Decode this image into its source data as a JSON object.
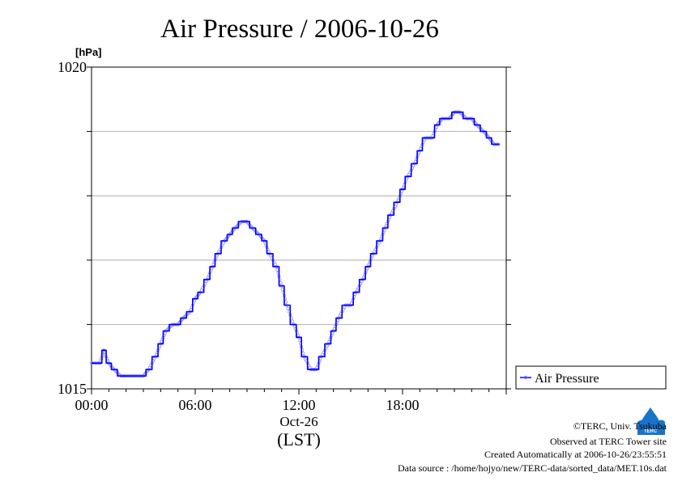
{
  "chart_data": {
    "type": "line",
    "title": "Air Pressure / 2006-10-26",
    "ylabel": "[hPa]",
    "xlabel": "(LST)",
    "x_date_label": "Oct-26",
    "ylim": [
      1015,
      1020
    ],
    "xlim": [
      0,
      24
    ],
    "y_tick_labels": [
      "1020",
      "1015"
    ],
    "y_gridlines": [
      1016,
      1017,
      1018,
      1019
    ],
    "x_tick_labels": [
      "00:00",
      "06:00",
      "12:00",
      "18:00"
    ],
    "x_tick_values": [
      0,
      6,
      12,
      18
    ],
    "grid": true,
    "legend_position": "right",
    "series": [
      {
        "name": "Air Pressure",
        "color": "#0000ff",
        "x": [
          0.0,
          0.5,
          0.7,
          1.0,
          1.3,
          1.7,
          2.0,
          2.5,
          3.0,
          3.3,
          3.7,
          4.0,
          4.3,
          4.7,
          5.0,
          5.3,
          5.7,
          6.0,
          6.3,
          6.7,
          7.0,
          7.3,
          7.7,
          8.0,
          8.3,
          8.7,
          9.0,
          9.3,
          9.7,
          10.0,
          10.3,
          10.7,
          11.0,
          11.3,
          11.7,
          12.0,
          12.3,
          12.7,
          13.0,
          13.3,
          13.7,
          14.0,
          14.3,
          14.7,
          15.0,
          15.3,
          15.7,
          16.0,
          16.3,
          16.7,
          17.0,
          17.3,
          17.7,
          18.0,
          18.3,
          18.7,
          19.0,
          19.3,
          19.7,
          20.0,
          20.3,
          20.7,
          21.0,
          21.3,
          21.7,
          22.0,
          22.3,
          22.7,
          23.0,
          23.3,
          23.6
        ],
        "values": [
          1015.4,
          1015.4,
          1015.6,
          1015.4,
          1015.3,
          1015.2,
          1015.2,
          1015.2,
          1015.2,
          1015.3,
          1015.5,
          1015.7,
          1015.9,
          1016.0,
          1016.0,
          1016.1,
          1016.2,
          1016.4,
          1016.5,
          1016.7,
          1016.9,
          1017.1,
          1017.3,
          1017.4,
          1017.5,
          1017.6,
          1017.6,
          1017.5,
          1017.4,
          1017.3,
          1017.1,
          1016.9,
          1016.6,
          1016.3,
          1016.0,
          1015.8,
          1015.5,
          1015.3,
          1015.3,
          1015.5,
          1015.7,
          1015.9,
          1016.1,
          1016.3,
          1016.3,
          1016.5,
          1016.7,
          1016.9,
          1017.1,
          1017.3,
          1017.5,
          1017.7,
          1017.9,
          1018.1,
          1018.3,
          1018.5,
          1018.7,
          1018.9,
          1018.9,
          1019.1,
          1019.2,
          1019.2,
          1019.3,
          1019.3,
          1019.2,
          1019.2,
          1019.1,
          1019.0,
          1018.9,
          1018.8,
          1018.8
        ]
      }
    ]
  },
  "credits": {
    "copyright": "©TERC, Univ. Tsukuba",
    "observed": "Observed at TERC Tower site",
    "created": "Created Automatically at 2006-10-26/23:55:51",
    "source": "Data source : /home/hojyo/new/TERC-data/sorted_data/MET.10s.dat"
  },
  "logo": {
    "text": "TERC",
    "color": "#1a73c8"
  }
}
